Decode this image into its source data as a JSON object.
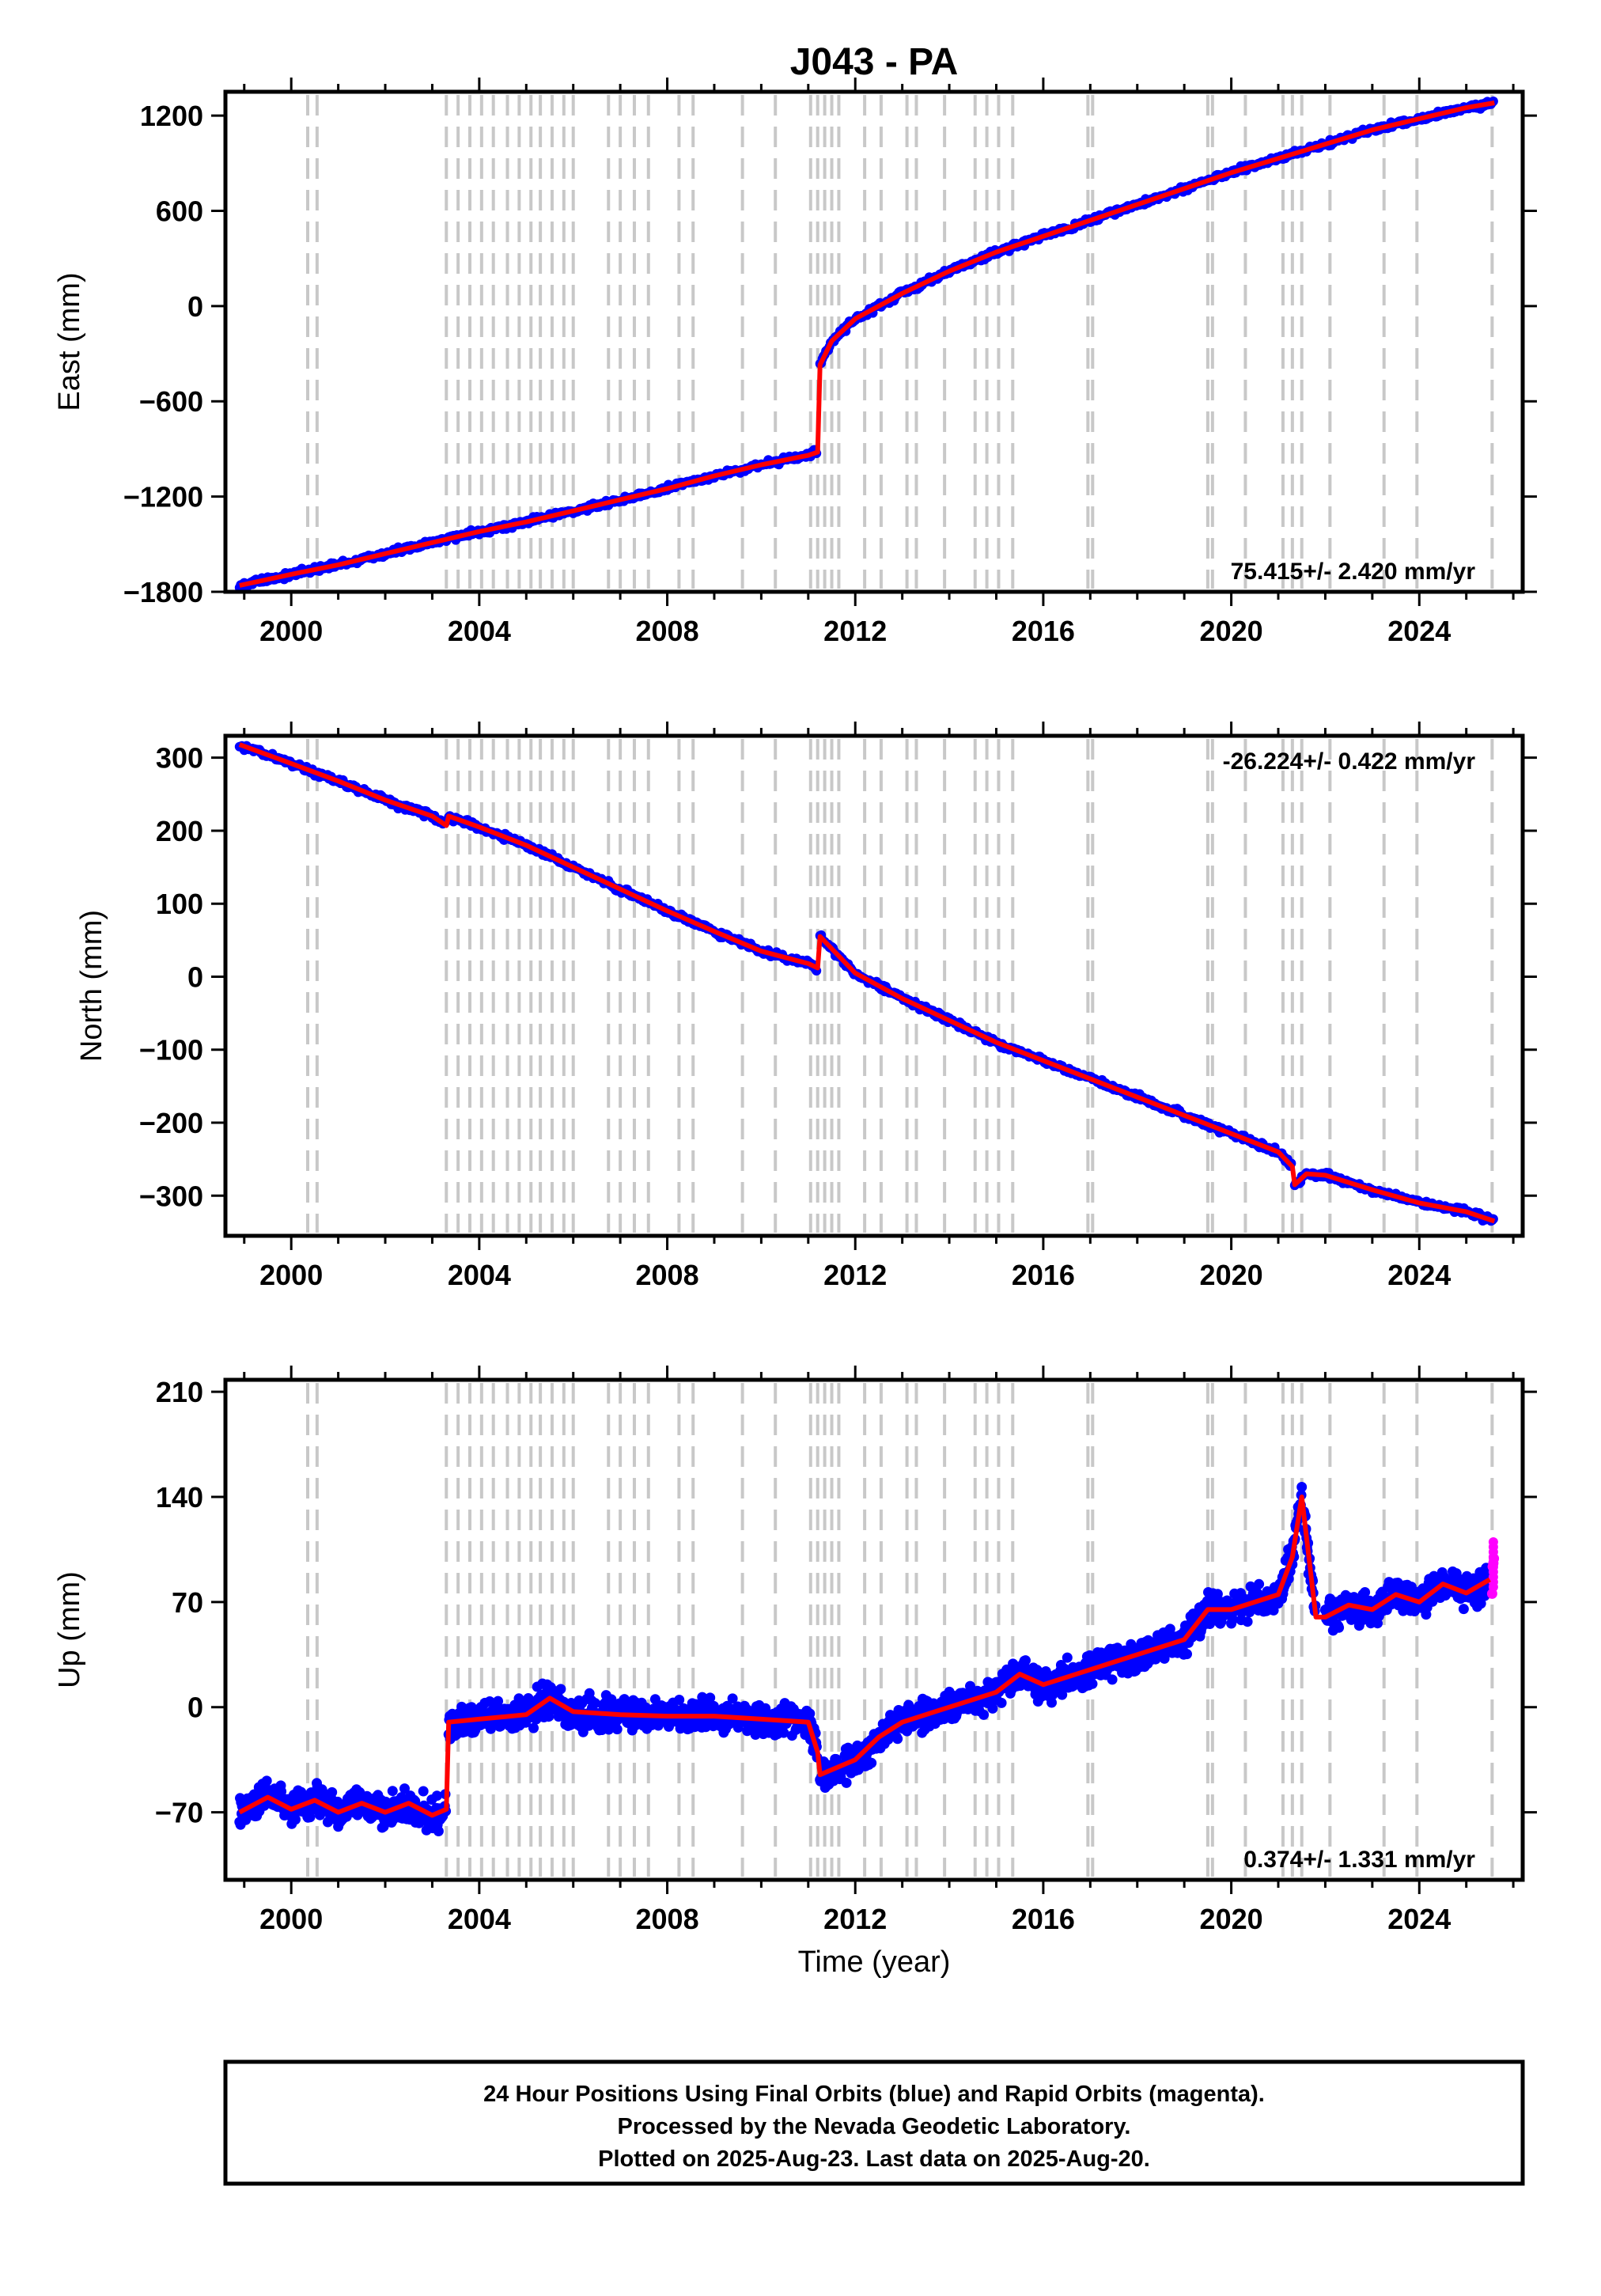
{
  "title": "J043 - PA",
  "xlabel": "Time (year)",
  "xticks": [
    2000,
    2004,
    2008,
    2012,
    2016,
    2020,
    2024
  ],
  "xlim": [
    1998.6,
    2026.2
  ],
  "event_lines": [
    2000.35,
    2000.55,
    2003.3,
    2003.55,
    2003.8,
    2004.05,
    2004.3,
    2004.6,
    2004.85,
    2005.1,
    2005.3,
    2005.55,
    2005.8,
    2006.0,
    2006.75,
    2007.0,
    2007.3,
    2007.6,
    2008.25,
    2008.55,
    2009.6,
    2010.3,
    2011.05,
    2011.2,
    2011.35,
    2011.5,
    2011.65,
    2012.2,
    2012.55,
    2013.1,
    2013.3,
    2013.9,
    2014.55,
    2014.8,
    2015.05,
    2015.35,
    2016.95,
    2017.05,
    2019.5,
    2019.6,
    2020.3,
    2021.1,
    2021.3,
    2021.5,
    2022.1,
    2023.25,
    2023.95,
    2025.55
  ],
  "caption": {
    "line1": "24 Hour Positions Using Final Orbits (blue) and Rapid Orbits (magenta).",
    "line2": "Processed by the Nevada Geodetic Laboratory.",
    "line3": "Plotted on 2025-Aug-23. Last data on 2025-Aug-20."
  },
  "chart_data": [
    {
      "type": "scatter",
      "panel": "east",
      "ylabel": "East (mm)",
      "ylim": [
        -1800,
        1350
      ],
      "yticks": [
        1200,
        600,
        0,
        -600,
        -1200,
        -1800
      ],
      "rate_text": "75.415+/- 2.420 mm/yr",
      "rate_position": "bottom-right",
      "colors": {
        "final": "#0000ff",
        "rapid": "#ff00ff",
        "model": "#ff0000",
        "event": "#c8c8c8"
      },
      "series": [
        {
          "name": "Final Orbits",
          "x": [
            1998.9,
            2000.0,
            2001.0,
            2002.0,
            2003.0,
            2004.0,
            2005.0,
            2006.0,
            2007.0,
            2008.0,
            2009.0,
            2010.0,
            2011.0,
            2011.2
          ],
          "y": [
            -1760,
            -1690,
            -1630,
            -1560,
            -1490,
            -1420,
            -1360,
            -1290,
            -1220,
            -1150,
            -1070,
            -1000,
            -940,
            -920
          ]
        },
        {
          "name": "Final Orbits",
          "x": [
            2011.25,
            2011.5,
            2012.0,
            2013.0,
            2014.0,
            2015.0,
            2016.0,
            2017.0,
            2018.0,
            2019.0,
            2020.0,
            2021.0,
            2022.0,
            2023.0,
            2024.0,
            2025.0,
            2025.6
          ],
          "y": [
            -370,
            -220,
            -80,
            80,
            220,
            340,
            440,
            540,
            640,
            740,
            840,
            930,
            1020,
            1110,
            1180,
            1250,
            1280
          ]
        }
      ]
    },
    {
      "type": "scatter",
      "panel": "north",
      "ylabel": "North (mm)",
      "ylim": [
        -355,
        330
      ],
      "yticks": [
        300,
        200,
        100,
        0,
        -100,
        -200,
        -300
      ],
      "rate_text": "-26.224+/- 0.422 mm/yr",
      "rate_position": "top-right",
      "series": [
        {
          "name": "Final Orbits",
          "x": [
            1998.9,
            2000.0,
            2001.0,
            2002.0,
            2003.0,
            2003.3
          ],
          "y": [
            318,
            292,
            268,
            242,
            220,
            207
          ]
        },
        {
          "name": "Final Orbits",
          "x": [
            2003.35,
            2004.0,
            2005.0,
            2006.0,
            2007.0,
            2008.0,
            2009.0,
            2010.0,
            2011.0,
            2011.2
          ],
          "y": [
            220,
            205,
            180,
            150,
            120,
            90,
            62,
            35,
            18,
            12
          ]
        },
        {
          "name": "Final Orbits",
          "x": [
            2011.25,
            2012.0,
            2013.0,
            2014.0,
            2015.0,
            2016.0,
            2017.0,
            2018.0,
            2019.0,
            2020.0,
            2021.0,
            2021.3
          ],
          "y": [
            55,
            5,
            -30,
            -60,
            -90,
            -115,
            -140,
            -165,
            -190,
            -215,
            -240,
            -260
          ]
        },
        {
          "name": "Final Orbits",
          "x": [
            2021.35,
            2021.6,
            2022.0,
            2023.0,
            2024.0,
            2025.0,
            2025.6
          ],
          "y": [
            -285,
            -270,
            -272,
            -292,
            -310,
            -322,
            -335
          ]
        }
      ]
    },
    {
      "type": "scatter",
      "panel": "up",
      "ylabel": "Up (mm)",
      "ylim": [
        -115,
        218
      ],
      "yticks": [
        210,
        140,
        70,
        0,
        -70
      ],
      "rate_text": "0.374+/- 1.331 mm/yr",
      "rate_position": "bottom-right",
      "series": [
        {
          "name": "Final Orbits",
          "x": [
            1998.9,
            1999.5,
            2000.0,
            2000.5,
            2001.0,
            2001.5,
            2002.0,
            2002.5,
            2003.0,
            2003.3
          ],
          "y": [
            -70,
            -60,
            -68,
            -62,
            -70,
            -64,
            -70,
            -64,
            -72,
            -68
          ]
        },
        {
          "name": "Final Orbits",
          "x": [
            2003.35,
            2004.0,
            2005.0,
            2005.5,
            2006.0,
            2007.0,
            2008.0,
            2009.0,
            2010.0,
            2011.0,
            2011.2
          ],
          "y": [
            -10,
            -8,
            -5,
            6,
            -3,
            -5,
            -6,
            -6,
            -8,
            -10,
            -30
          ]
        },
        {
          "name": "Final Orbits",
          "x": [
            2011.25,
            2012.0,
            2012.5,
            2013.0,
            2014.0,
            2015.0,
            2015.5,
            2016.0,
            2017.0,
            2018.0,
            2019.0,
            2019.5,
            2020.0,
            2021.0,
            2021.3,
            2021.5,
            2021.8
          ],
          "y": [
            -45,
            -35,
            -20,
            -10,
            0,
            10,
            22,
            15,
            25,
            35,
            45,
            65,
            65,
            75,
            100,
            140,
            60
          ]
        },
        {
          "name": "Final Orbits",
          "x": [
            2022.0,
            2022.5,
            2023.0,
            2023.5,
            2024.0,
            2024.5,
            2025.0,
            2025.5
          ],
          "y": [
            60,
            68,
            65,
            75,
            70,
            82,
            76,
            85
          ]
        },
        {
          "name": "Rapid Orbits",
          "x": [
            2025.55,
            2025.6
          ],
          "y": [
            80,
            110
          ]
        }
      ]
    }
  ]
}
